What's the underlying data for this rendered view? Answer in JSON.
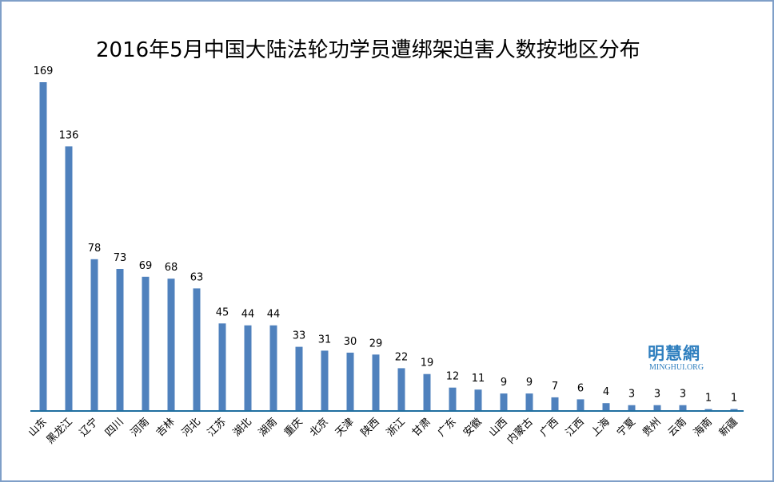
{
  "chart_data": {
    "type": "bar",
    "title": "2016年5月中国大陆法轮功学员遭绑架迫害人数按地区分布",
    "categories": [
      "山东",
      "黑龙江",
      "辽宁",
      "四川",
      "河南",
      "吉林",
      "河北",
      "江苏",
      "湖北",
      "湖南",
      "重庆",
      "北京",
      "天津",
      "陕西",
      "浙江",
      "甘肃",
      "广东",
      "安徽",
      "山西",
      "内蒙古",
      "广西",
      "江西",
      "上海",
      "宁夏",
      "贵州",
      "云南",
      "海南",
      "新疆"
    ],
    "values": [
      169,
      136,
      78,
      73,
      69,
      68,
      63,
      45,
      44,
      44,
      33,
      31,
      30,
      29,
      22,
      19,
      12,
      11,
      9,
      9,
      7,
      6,
      4,
      3,
      3,
      3,
      1,
      1
    ],
    "xlabel": "",
    "ylabel": "",
    "ylim": [
      0,
      169
    ],
    "grid": false,
    "legend": "none",
    "bar_color": "#4f81bd",
    "axis_color": "#1f6fa0",
    "data_labels": true
  },
  "watermark": {
    "cn": "明慧網",
    "en": "MINGHUI.ORG",
    "color": "#2f7fbf"
  }
}
